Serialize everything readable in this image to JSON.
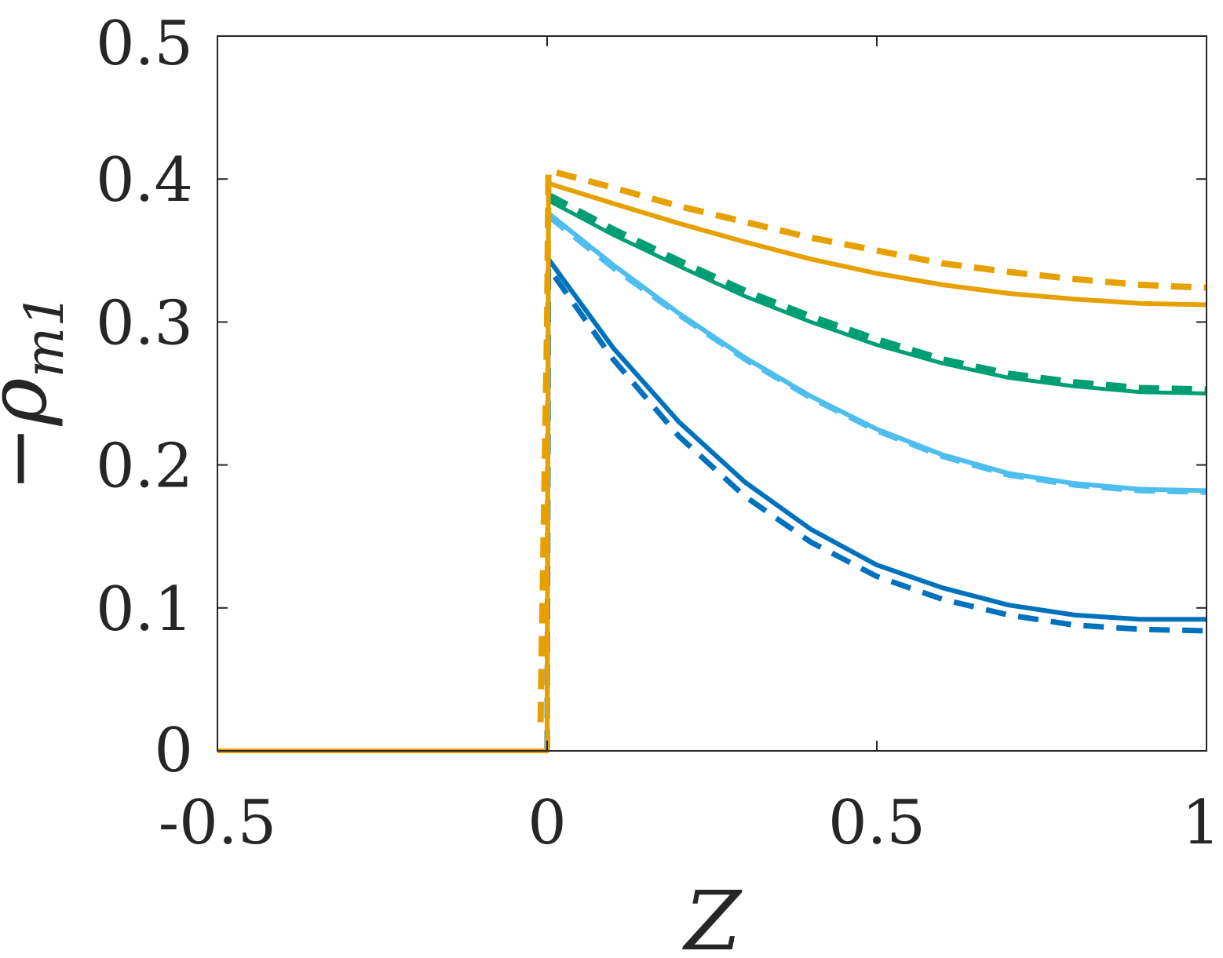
{
  "chart_data": {
    "type": "line",
    "title": "",
    "xlabel": "Z",
    "ylabel_prefix": "−",
    "ylabel_symbol": "ρ",
    "ylabel_sub": "m1",
    "xlim": [
      -0.5,
      1
    ],
    "ylim": [
      0,
      0.5
    ],
    "xticks": [
      -0.5,
      0,
      0.5,
      1
    ],
    "xtick_labels": [
      "-0.5",
      "0",
      "0.5",
      "1"
    ],
    "yticks": [
      0,
      0.1,
      0.2,
      0.3,
      0.4,
      0.5
    ],
    "ytick_labels": [
      "0",
      "0.1",
      "0.2",
      "0.3",
      "0.4",
      "0.5"
    ],
    "grid": false,
    "series": [
      {
        "color": "#0072BD",
        "style": "solid",
        "width": 6,
        "x": [
          -0.5,
          0,
          0.002,
          0.1,
          0.2,
          0.3,
          0.4,
          0.5,
          0.6,
          0.7,
          0.8,
          0.9,
          1.0
        ],
        "y": [
          0,
          0,
          0.344,
          0.282,
          0.23,
          0.188,
          0.155,
          0.13,
          0.114,
          0.102,
          0.095,
          0.092,
          0.092
        ]
      },
      {
        "color": "#0072BD",
        "style": "dashed",
        "width": 7,
        "x": [
          0,
          0.002,
          0.1,
          0.2,
          0.3,
          0.4,
          0.5,
          0.6,
          0.7,
          0.8,
          0.9,
          1.0
        ],
        "y": [
          0,
          0.338,
          0.274,
          0.22,
          0.178,
          0.146,
          0.122,
          0.106,
          0.095,
          0.088,
          0.085,
          0.084
        ]
      },
      {
        "color": "#4DBEEE",
        "style": "solid",
        "width": 6,
        "x": [
          0,
          0.002,
          0.1,
          0.2,
          0.3,
          0.4,
          0.5,
          0.6,
          0.7,
          0.8,
          0.9,
          1.0
        ],
        "y": [
          0,
          0.376,
          0.34,
          0.306,
          0.275,
          0.248,
          0.225,
          0.207,
          0.194,
          0.187,
          0.183,
          0.182
        ]
      },
      {
        "color": "#4DBEEE",
        "style": "dashed",
        "width": 7,
        "x": [
          0.002,
          0.1,
          0.2,
          0.3,
          0.4,
          0.5,
          0.6,
          0.7,
          0.8,
          0.9,
          1.0
        ],
        "y": [
          0.374,
          0.338,
          0.305,
          0.274,
          0.247,
          0.224,
          0.206,
          0.193,
          0.186,
          0.182,
          0.181
        ]
      },
      {
        "color": "#009E73",
        "style": "solid",
        "width": 5,
        "x": [
          0,
          0.002,
          0.1,
          0.2,
          0.3,
          0.4,
          0.5,
          0.6,
          0.7,
          0.8,
          0.9,
          1.0
        ],
        "y": [
          0,
          0.385,
          0.361,
          0.339,
          0.318,
          0.3,
          0.284,
          0.271,
          0.261,
          0.255,
          0.251,
          0.25
        ]
      },
      {
        "color": "#009E73",
        "style": "dashed",
        "width": 11,
        "x": [
          0.002,
          0.1,
          0.2,
          0.3,
          0.4,
          0.5,
          0.6,
          0.7,
          0.8,
          0.9,
          1.0
        ],
        "y": [
          0.388,
          0.364,
          0.342,
          0.321,
          0.303,
          0.287,
          0.273,
          0.263,
          0.257,
          0.253,
          0.252
        ]
      },
      {
        "color": "#E6A000",
        "style": "dashed",
        "width": 8,
        "x": [
          -0.01,
          0,
          0.002,
          0.1,
          0.2,
          0.3,
          0.4,
          0.5,
          0.6,
          0.7,
          0.8,
          0.9,
          1.0
        ],
        "y": [
          0.02,
          0.3,
          0.406,
          0.394,
          0.381,
          0.37,
          0.359,
          0.35,
          0.341,
          0.335,
          0.33,
          0.326,
          0.324
        ]
      },
      {
        "color": "#E6A000",
        "style": "solid",
        "width": 6,
        "x": [
          -0.5,
          0,
          0.002,
          0.1,
          0.2,
          0.3,
          0.4,
          0.5,
          0.6,
          0.7,
          0.8,
          0.9,
          1.0
        ],
        "y": [
          0,
          0,
          0.397,
          0.383,
          0.369,
          0.356,
          0.344,
          0.334,
          0.326,
          0.32,
          0.316,
          0.313,
          0.312
        ]
      }
    ]
  }
}
